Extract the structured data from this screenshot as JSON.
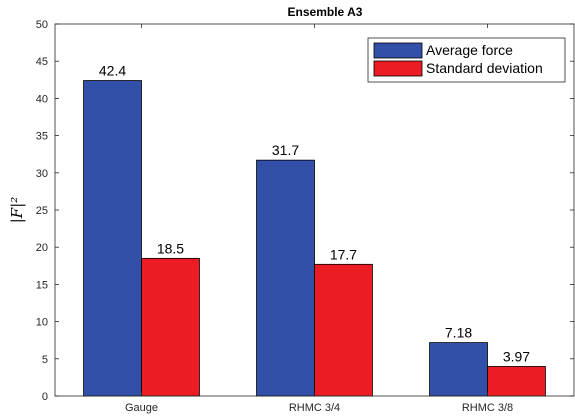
{
  "chart_data": {
    "type": "bar",
    "title": "Ensemble A3",
    "xlabel": "",
    "ylabel": "|F|²",
    "categories": [
      "Gauge",
      "RHMC 3/4",
      "RHMC 3/8"
    ],
    "series": [
      {
        "name": "Average force",
        "values": [
          42.4,
          31.7,
          7.18
        ],
        "labels": [
          "42.4",
          "31.7",
          "7.18"
        ],
        "color": "#3250a8"
      },
      {
        "name": "Standard deviation",
        "values": [
          18.5,
          17.7,
          3.97
        ],
        "labels": [
          "18.5",
          "17.7",
          "3.97"
        ],
        "color": "#ec1c24"
      }
    ],
    "ylim": [
      0,
      50
    ],
    "yticks": [
      0,
      5,
      10,
      15,
      20,
      25,
      30,
      35,
      40,
      45,
      50
    ],
    "grid": false,
    "legend_position": "top-right"
  }
}
